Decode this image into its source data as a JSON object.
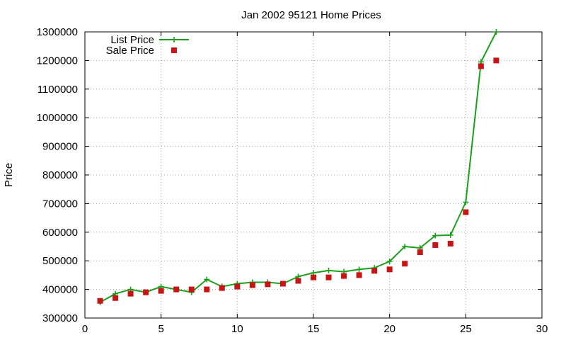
{
  "chart_data": {
    "type": "line",
    "title": "Jan 2002 95121 Home Prices",
    "xlabel": "",
    "ylabel": "Price",
    "xlim": [
      0,
      30
    ],
    "ylim": [
      300000,
      1300000
    ],
    "xticks": [
      0,
      5,
      10,
      15,
      20,
      25,
      30
    ],
    "yticks": [
      300000,
      400000,
      500000,
      600000,
      700000,
      800000,
      900000,
      1000000,
      1100000,
      1200000,
      1300000
    ],
    "grid": true,
    "legend_position": "top-left",
    "series": [
      {
        "name": "List Price",
        "style": "line+cross",
        "color": "#1aa01a",
        "x": [
          1,
          2,
          3,
          4,
          5,
          6,
          7,
          8,
          9,
          10,
          11,
          12,
          13,
          14,
          15,
          16,
          17,
          18,
          19,
          20,
          21,
          22,
          23,
          24,
          25,
          26,
          27
        ],
        "y": [
          355000,
          385000,
          400000,
          390000,
          410000,
          400000,
          390000,
          435000,
          410000,
          420000,
          425000,
          425000,
          420000,
          445000,
          458000,
          466000,
          462000,
          470000,
          475000,
          498000,
          550000,
          545000,
          588000,
          590000,
          705000,
          1195000,
          1300000
        ]
      },
      {
        "name": "Sale Price",
        "style": "square-marker",
        "color": "#c81414",
        "x": [
          1,
          2,
          3,
          4,
          5,
          6,
          7,
          8,
          9,
          10,
          11,
          12,
          13,
          14,
          15,
          16,
          17,
          18,
          19,
          20,
          21,
          22,
          23,
          24,
          25,
          26,
          27
        ],
        "y": [
          360000,
          370000,
          385000,
          390000,
          395000,
          400000,
          400000,
          400000,
          405000,
          410000,
          415000,
          418000,
          420000,
          430000,
          442000,
          442000,
          447000,
          450000,
          465000,
          470000,
          490000,
          530000,
          555000,
          560000,
          670000,
          1180000,
          1200000
        ]
      }
    ]
  }
}
